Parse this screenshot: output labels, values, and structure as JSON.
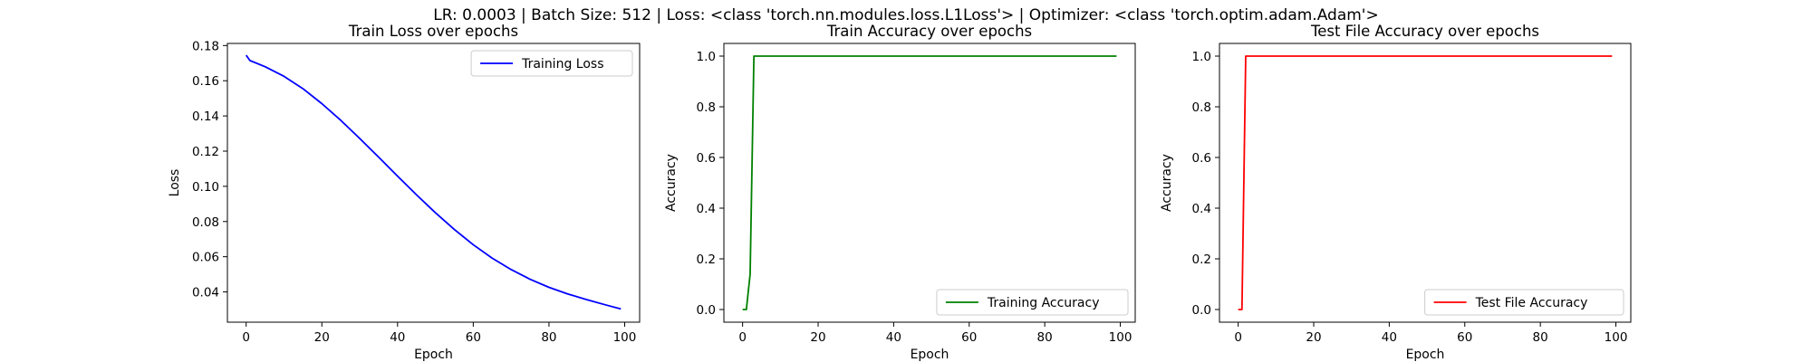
{
  "suptitle": "LR: 0.0003 | Batch Size: 512 | Loss: <class 'torch.nn.modules.loss.L1Loss'> | Optimizer: <class 'torch.optim.adam.Adam'>",
  "chart_data": [
    {
      "type": "line",
      "title": "Train Loss over epochs",
      "xlabel": "Epoch",
      "ylabel": "Loss",
      "xlim": [
        -4.95,
        103.95
      ],
      "ylim": [
        0.0228,
        0.1812
      ],
      "xticks": [
        0,
        20,
        40,
        60,
        80,
        100
      ],
      "xtick_labels": [
        "0",
        "20",
        "40",
        "60",
        "80",
        "100"
      ],
      "yticks": [
        0.04,
        0.06,
        0.08,
        0.1,
        0.12,
        0.14,
        0.16,
        0.18
      ],
      "ytick_labels": [
        "0.04",
        "0.06",
        "0.08",
        "0.10",
        "0.12",
        "0.14",
        "0.16",
        "0.18"
      ],
      "grid": false,
      "legend_position": "top-right",
      "series": [
        {
          "name": "Training Loss",
          "color": "#0000ff",
          "x": [
            0,
            1,
            5,
            10,
            15,
            20,
            25,
            30,
            35,
            40,
            45,
            50,
            55,
            60,
            65,
            70,
            75,
            80,
            85,
            90,
            95,
            99
          ],
          "y": [
            0.1745,
            0.1715,
            0.168,
            0.1625,
            0.1555,
            0.147,
            0.1375,
            0.1272,
            0.1166,
            0.1058,
            0.0952,
            0.085,
            0.0755,
            0.0668,
            0.0592,
            0.0527,
            0.0472,
            0.0426,
            0.0388,
            0.0356,
            0.0326,
            0.0303
          ]
        }
      ]
    },
    {
      "type": "line",
      "title": "Train Accuracy over epochs",
      "xlabel": "Epoch",
      "ylabel": "Accuracy",
      "xlim": [
        -4.95,
        103.95
      ],
      "ylim": [
        -0.05,
        1.05
      ],
      "xticks": [
        0,
        20,
        40,
        60,
        80,
        100
      ],
      "xtick_labels": [
        "0",
        "20",
        "40",
        "60",
        "80",
        "100"
      ],
      "yticks": [
        0.0,
        0.2,
        0.4,
        0.6,
        0.8,
        1.0
      ],
      "ytick_labels": [
        "0.0",
        "0.2",
        "0.4",
        "0.6",
        "0.8",
        "1.0"
      ],
      "grid": false,
      "legend_position": "lower-right",
      "series": [
        {
          "name": "Training Accuracy",
          "color": "#008000",
          "x": [
            0,
            1,
            2,
            3,
            10,
            20,
            30,
            40,
            50,
            60,
            70,
            80,
            90,
            99
          ],
          "y": [
            0.0,
            0.0,
            0.14,
            1.0,
            1.0,
            1.0,
            1.0,
            1.0,
            1.0,
            1.0,
            1.0,
            1.0,
            1.0,
            1.0
          ]
        }
      ]
    },
    {
      "type": "line",
      "title": "Test File Accuracy over epochs",
      "xlabel": "Epoch",
      "ylabel": "Accuracy",
      "xlim": [
        -4.95,
        103.95
      ],
      "ylim": [
        -0.05,
        1.05
      ],
      "xticks": [
        0,
        20,
        40,
        60,
        80,
        100
      ],
      "xtick_labels": [
        "0",
        "20",
        "40",
        "60",
        "80",
        "100"
      ],
      "yticks": [
        0.0,
        0.2,
        0.4,
        0.6,
        0.8,
        1.0
      ],
      "ytick_labels": [
        "0.0",
        "0.2",
        "0.4",
        "0.6",
        "0.8",
        "1.0"
      ],
      "grid": false,
      "legend_position": "lower-right",
      "series": [
        {
          "name": "Test File Accuracy",
          "color": "#ff0000",
          "x": [
            0,
            1,
            2,
            10,
            20,
            30,
            40,
            50,
            60,
            70,
            80,
            90,
            99
          ],
          "y": [
            0.0,
            0.0,
            1.0,
            1.0,
            1.0,
            1.0,
            1.0,
            1.0,
            1.0,
            1.0,
            1.0,
            1.0,
            1.0
          ]
        }
      ]
    }
  ]
}
